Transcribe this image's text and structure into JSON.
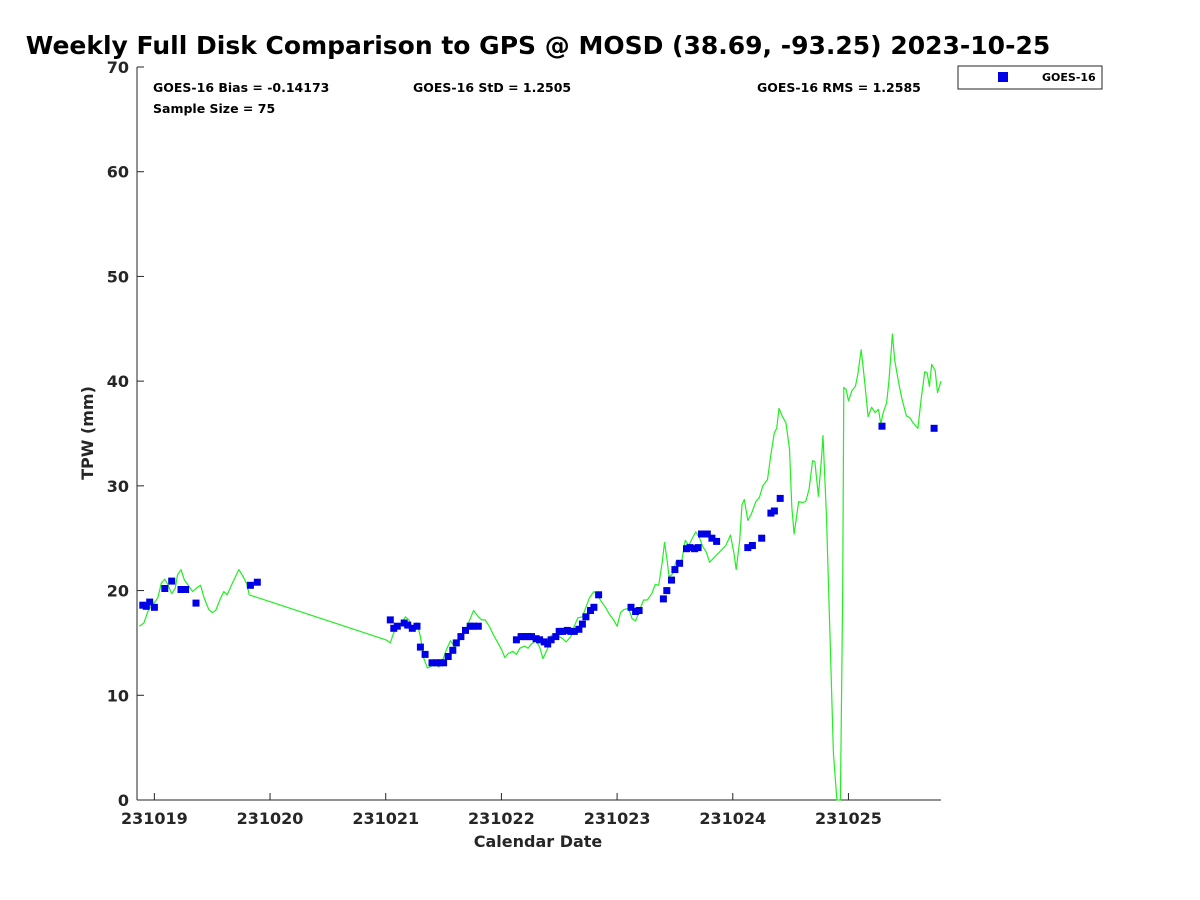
{
  "chart_data": {
    "type": "scatter",
    "title": "Weekly Full Disk Comparison to GPS @ MOSD (38.69, -93.25) 2023-10-25",
    "xlabel": "Calendar Date",
    "ylabel": "TPW (mm)",
    "xlim": [
      231019,
      231026
    ],
    "ylim": [
      0,
      70
    ],
    "x_ticks": [
      {
        "value": 0,
        "label": "231019"
      },
      {
        "value": 1,
        "label": "231020"
      },
      {
        "value": 2,
        "label": "231021"
      },
      {
        "value": 3,
        "label": "231022"
      },
      {
        "value": 4,
        "label": "231023"
      },
      {
        "value": 5,
        "label": "231024"
      },
      {
        "value": 6,
        "label": "231025"
      }
    ],
    "y_ticks": [
      0,
      10,
      20,
      30,
      40,
      50,
      60,
      70
    ],
    "x_range_days": [
      -0.15,
      6.8
    ],
    "stats": {
      "bias": "GOES-16 Bias = -0.14173",
      "std": "GOES-16 StD = 1.2505",
      "rms": "GOES-16 RMS = 1.2585",
      "sample": "Sample Size = 75"
    },
    "legend": {
      "label": "GOES-16",
      "position": "top-right",
      "color": "#0000e6"
    },
    "series": [
      {
        "name": "GPS",
        "kind": "line",
        "color": "#22ee22",
        "points": [
          [
            -0.13,
            16.6
          ],
          [
            -0.09,
            16.9
          ],
          [
            -0.05,
            18.2
          ],
          [
            -0.01,
            18.7
          ],
          [
            0.03,
            19.3
          ],
          [
            0.06,
            20.7
          ],
          [
            0.09,
            21.1
          ],
          [
            0.12,
            20.5
          ],
          [
            0.15,
            19.7
          ],
          [
            0.18,
            20.2
          ],
          [
            0.2,
            21.5
          ],
          [
            0.23,
            22
          ],
          [
            0.26,
            21
          ],
          [
            0.3,
            20.4
          ],
          [
            0.33,
            19.9
          ],
          [
            0.37,
            20.3
          ],
          [
            0.4,
            20.5
          ],
          [
            0.43,
            19.3
          ],
          [
            0.47,
            18.2
          ],
          [
            0.5,
            17.9
          ],
          [
            0.53,
            18.1
          ],
          [
            0.57,
            19.2
          ],
          [
            0.6,
            19.9
          ],
          [
            0.63,
            19.6
          ],
          [
            0.67,
            20.6
          ],
          [
            0.7,
            21.3
          ],
          [
            0.73,
            22
          ],
          [
            0.77,
            21.3
          ],
          [
            0.8,
            20.6
          ],
          [
            0.82,
            19.6
          ],
          [
            2.0,
            15.3
          ],
          [
            2.04,
            15
          ],
          [
            2.07,
            16
          ],
          [
            2.1,
            16.4
          ],
          [
            2.13,
            16.8
          ],
          [
            2.17,
            17.5
          ],
          [
            2.2,
            17.2
          ],
          [
            2.23,
            16.5
          ],
          [
            2.27,
            16.9
          ],
          [
            2.3,
            15.6
          ],
          [
            2.33,
            13.5
          ],
          [
            2.36,
            12.6
          ],
          [
            2.4,
            12.8
          ],
          [
            2.43,
            13
          ],
          [
            2.46,
            12.7
          ],
          [
            2.5,
            13.6
          ],
          [
            2.53,
            14.5
          ],
          [
            2.56,
            15.2
          ],
          [
            2.6,
            14.6
          ],
          [
            2.63,
            15
          ],
          [
            2.66,
            15.8
          ],
          [
            2.7,
            16.5
          ],
          [
            2.73,
            17.3
          ],
          [
            2.76,
            18.1
          ],
          [
            2.8,
            17.5
          ],
          [
            2.83,
            17.2
          ],
          [
            2.86,
            17.2
          ],
          [
            2.9,
            16.5
          ],
          [
            2.93,
            15.8
          ],
          [
            2.97,
            15
          ],
          [
            3.0,
            14.4
          ],
          [
            3.03,
            13.6
          ],
          [
            3.06,
            14
          ],
          [
            3.1,
            14.2
          ],
          [
            3.13,
            13.9
          ],
          [
            3.16,
            14.5
          ],
          [
            3.2,
            14.7
          ],
          [
            3.23,
            14.5
          ],
          [
            3.26,
            14.9
          ],
          [
            3.3,
            15.2
          ],
          [
            3.33,
            14.6
          ],
          [
            3.36,
            13.5
          ],
          [
            3.4,
            14.5
          ],
          [
            3.43,
            15.7
          ],
          [
            3.46,
            15.8
          ],
          [
            3.5,
            15.6
          ],
          [
            3.53,
            15.4
          ],
          [
            3.56,
            15.1
          ],
          [
            3.6,
            15.6
          ],
          [
            3.63,
            16.6
          ],
          [
            3.66,
            17.4
          ],
          [
            3.7,
            17.5
          ],
          [
            3.73,
            18.4
          ],
          [
            3.76,
            19.3
          ],
          [
            3.8,
            19.9
          ],
          [
            3.83,
            19.6
          ],
          [
            3.86,
            19
          ],
          [
            3.9,
            18.4
          ],
          [
            3.93,
            17.8
          ],
          [
            3.97,
            17.2
          ],
          [
            4.0,
            16.6
          ],
          [
            4.03,
            17.9
          ],
          [
            4.06,
            18.2
          ],
          [
            4.1,
            18.3
          ],
          [
            4.13,
            17.3
          ],
          [
            4.16,
            17.1
          ],
          [
            4.2,
            18.3
          ],
          [
            4.23,
            19.1
          ],
          [
            4.26,
            19.1
          ],
          [
            4.3,
            19.7
          ],
          [
            4.33,
            20.6
          ],
          [
            4.36,
            20.5
          ],
          [
            4.39,
            22.7
          ],
          [
            4.41,
            24.6
          ],
          [
            4.43,
            23.1
          ],
          [
            4.45,
            21.3
          ],
          [
            4.48,
            21.6
          ],
          [
            4.51,
            22.8
          ],
          [
            4.53,
            22.5
          ],
          [
            4.56,
            22.9
          ],
          [
            4.59,
            24.8
          ],
          [
            4.62,
            24.3
          ],
          [
            4.65,
            25
          ],
          [
            4.68,
            25.6
          ],
          [
            4.71,
            25.1
          ],
          [
            4.74,
            24.2
          ],
          [
            4.77,
            23.7
          ],
          [
            4.8,
            22.7
          ],
          [
            4.94,
            24.3
          ],
          [
            4.98,
            25.3
          ],
          [
            5.01,
            23.6
          ],
          [
            5.03,
            22
          ],
          [
            5.06,
            24.8
          ],
          [
            5.08,
            28.2
          ],
          [
            5.1,
            28.7
          ],
          [
            5.13,
            26.7
          ],
          [
            5.16,
            27.3
          ],
          [
            5.2,
            28.5
          ],
          [
            5.23,
            28.9
          ],
          [
            5.26,
            30
          ],
          [
            5.3,
            30.6
          ],
          [
            5.33,
            33
          ],
          [
            5.36,
            35.1
          ],
          [
            5.38,
            35.5
          ],
          [
            5.4,
            37.4
          ],
          [
            5.43,
            36.6
          ],
          [
            5.46,
            36
          ],
          [
            5.49,
            33.5
          ],
          [
            5.51,
            28
          ],
          [
            5.53,
            25.4
          ],
          [
            5.57,
            28.5
          ],
          [
            5.6,
            28.4
          ],
          [
            5.63,
            28.5
          ],
          [
            5.66,
            29.7
          ],
          [
            5.69,
            32.4
          ],
          [
            5.71,
            32.3
          ],
          [
            5.74,
            29
          ],
          [
            5.77,
            33
          ],
          [
            5.78,
            34.8
          ],
          [
            5.81,
            27
          ],
          [
            5.84,
            16
          ],
          [
            5.87,
            4.5
          ],
          [
            5.9,
            0
          ],
          [
            5.93,
            0
          ],
          [
            5.95,
            20
          ],
          [
            5.96,
            39.4
          ],
          [
            5.98,
            39.2
          ],
          [
            6.0,
            38.1
          ],
          [
            6.03,
            39.1
          ],
          [
            6.06,
            39.5
          ],
          [
            6.08,
            40.6
          ],
          [
            6.11,
            43
          ],
          [
            6.14,
            40
          ],
          [
            6.17,
            36.6
          ],
          [
            6.2,
            37.5
          ],
          [
            6.23,
            37
          ],
          [
            6.26,
            37.3
          ],
          [
            6.28,
            35.9
          ],
          [
            6.3,
            37
          ],
          [
            6.33,
            37.9
          ],
          [
            6.35,
            40
          ],
          [
            6.37,
            43
          ],
          [
            6.38,
            44.5
          ],
          [
            6.4,
            42
          ],
          [
            6.43,
            40.1
          ],
          [
            6.46,
            38.4
          ],
          [
            6.5,
            36.7
          ],
          [
            6.53,
            36.5
          ],
          [
            6.56,
            36
          ],
          [
            6.6,
            35.5
          ],
          [
            6.63,
            38.4
          ],
          [
            6.66,
            40.9
          ],
          [
            6.68,
            40.8
          ],
          [
            6.7,
            39.5
          ],
          [
            6.72,
            41.6
          ],
          [
            6.75,
            41
          ],
          [
            6.77,
            38.9
          ],
          [
            6.8,
            40
          ]
        ]
      },
      {
        "name": "GOES-16",
        "kind": "markers",
        "color": "#0000e6",
        "points": [
          [
            -0.1,
            18.6
          ],
          [
            -0.07,
            18.5
          ],
          [
            -0.04,
            18.9
          ],
          [
            0.0,
            18.4
          ],
          [
            0.09,
            20.2
          ],
          [
            0.15,
            20.9
          ],
          [
            0.23,
            20.1
          ],
          [
            0.27,
            20.1
          ],
          [
            0.36,
            18.8
          ],
          [
            0.83,
            20.5
          ],
          [
            0.89,
            20.8
          ],
          [
            2.04,
            17.2
          ],
          [
            2.07,
            16.4
          ],
          [
            2.1,
            16.6
          ],
          [
            2.16,
            16.9
          ],
          [
            2.19,
            16.7
          ],
          [
            2.23,
            16.4
          ],
          [
            2.27,
            16.6
          ],
          [
            2.3,
            14.6
          ],
          [
            2.34,
            13.9
          ],
          [
            2.4,
            13.1
          ],
          [
            2.44,
            13.1
          ],
          [
            2.47,
            13.1
          ],
          [
            2.5,
            13.1
          ],
          [
            2.54,
            13.7
          ],
          [
            2.58,
            14.3
          ],
          [
            2.61,
            15
          ],
          [
            2.65,
            15.6
          ],
          [
            2.69,
            16.2
          ],
          [
            2.73,
            16.6
          ],
          [
            2.76,
            16.6
          ],
          [
            2.8,
            16.6
          ],
          [
            3.13,
            15.3
          ],
          [
            3.17,
            15.6
          ],
          [
            3.2,
            15.6
          ],
          [
            3.23,
            15.6
          ],
          [
            3.26,
            15.6
          ],
          [
            3.3,
            15.4
          ],
          [
            3.33,
            15.3
          ],
          [
            3.37,
            15.1
          ],
          [
            3.4,
            14.9
          ],
          [
            3.43,
            15.3
          ],
          [
            3.47,
            15.6
          ],
          [
            3.5,
            16.1
          ],
          [
            3.53,
            16.1
          ],
          [
            3.57,
            16.2
          ],
          [
            3.6,
            16.1
          ],
          [
            3.63,
            16.1
          ],
          [
            3.67,
            16.3
          ],
          [
            3.7,
            16.8
          ],
          [
            3.73,
            17.5
          ],
          [
            3.77,
            18.1
          ],
          [
            3.8,
            18.4
          ],
          [
            3.84,
            19.6
          ],
          [
            4.12,
            18.4
          ],
          [
            4.16,
            18
          ],
          [
            4.19,
            18.1
          ],
          [
            4.4,
            19.2
          ],
          [
            4.43,
            20
          ],
          [
            4.47,
            21
          ],
          [
            4.5,
            22
          ],
          [
            4.54,
            22.6
          ],
          [
            4.6,
            24
          ],
          [
            4.63,
            24.1
          ],
          [
            4.67,
            24
          ],
          [
            4.7,
            24.1
          ],
          [
            4.73,
            25.4
          ],
          [
            4.78,
            25.4
          ],
          [
            4.82,
            25
          ],
          [
            4.86,
            24.7
          ],
          [
            5.13,
            24.1
          ],
          [
            5.17,
            24.3
          ],
          [
            5.25,
            25
          ],
          [
            5.33,
            27.4
          ],
          [
            5.36,
            27.6
          ],
          [
            5.41,
            28.8
          ],
          [
            6.29,
            35.7
          ],
          [
            6.74,
            35.5
          ]
        ]
      }
    ]
  }
}
